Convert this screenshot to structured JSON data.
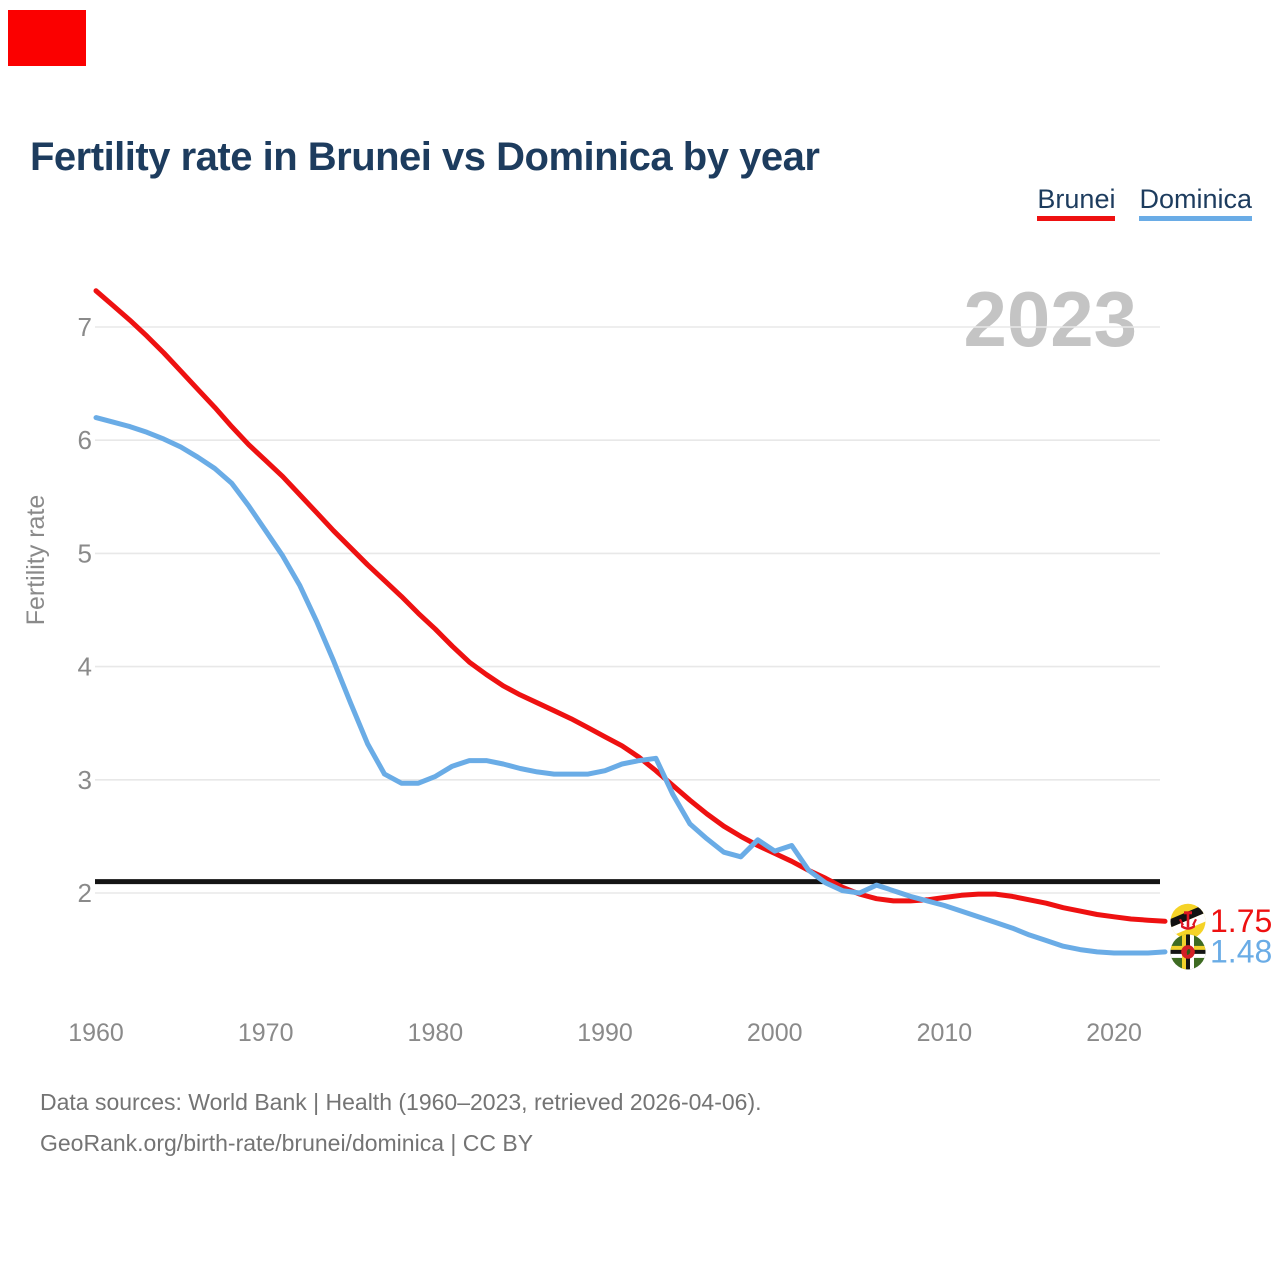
{
  "title": "Fertility rate in Brunei vs Dominica by year",
  "watermark": "2023",
  "legend": {
    "items": [
      {
        "label": "Brunei",
        "color": "#ee1111"
      },
      {
        "label": "Dominica",
        "color": "#6aace6"
      }
    ]
  },
  "footer": {
    "line1": "Data sources: World Bank | Health (1960–2023, retrieved 2026-04-06).",
    "line2": "GeoRank.org/birth-rate/brunei/dominica | CC BY"
  },
  "decorations": {
    "red_box_color": "#fb0000",
    "watermark_color": "#c4c4c4",
    "grid_color": "#e8e8e8",
    "axis_text_color": "#8a8a8a"
  },
  "chart_data": {
    "type": "line",
    "title": "Fertility rate in Brunei vs Dominica by year",
    "xlabel": "",
    "ylabel": "Fertility rate",
    "grid": true,
    "legend_position": "top-right",
    "xticks": [
      1960,
      1970,
      1980,
      1990,
      2000,
      2010,
      2020
    ],
    "yticks": [
      2,
      3,
      4,
      5,
      6,
      7
    ],
    "ylim": [
      1.3,
      7.45
    ],
    "xlim": [
      1960,
      2023
    ],
    "reference_line": {
      "value": 2.1,
      "color": "#141414"
    },
    "x": [
      1960,
      1961,
      1962,
      1963,
      1964,
      1965,
      1966,
      1967,
      1968,
      1969,
      1970,
      1971,
      1972,
      1973,
      1974,
      1975,
      1976,
      1977,
      1978,
      1979,
      1980,
      1981,
      1982,
      1983,
      1984,
      1985,
      1986,
      1987,
      1988,
      1989,
      1990,
      1991,
      1992,
      1993,
      1994,
      1995,
      1996,
      1997,
      1998,
      1999,
      2000,
      2001,
      2002,
      2003,
      2004,
      2005,
      2006,
      2007,
      2008,
      2009,
      2010,
      2011,
      2012,
      2013,
      2014,
      2015,
      2016,
      2017,
      2018,
      2019,
      2020,
      2021,
      2022,
      2023
    ],
    "series": [
      {
        "name": "Brunei",
        "color": "#ee1111",
        "end_label": "1.75",
        "end_value": 1.75,
        "values": [
          7.32,
          7.19,
          7.06,
          6.92,
          6.77,
          6.61,
          6.45,
          6.29,
          6.12,
          5.96,
          5.82,
          5.68,
          5.52,
          5.36,
          5.2,
          5.05,
          4.9,
          4.76,
          4.62,
          4.47,
          4.33,
          4.18,
          4.04,
          3.93,
          3.83,
          3.75,
          3.68,
          3.61,
          3.54,
          3.46,
          3.38,
          3.3,
          3.2,
          3.08,
          2.95,
          2.82,
          2.7,
          2.59,
          2.5,
          2.42,
          2.35,
          2.28,
          2.2,
          2.13,
          2.05,
          1.99,
          1.95,
          1.93,
          1.93,
          1.94,
          1.96,
          1.98,
          1.99,
          1.99,
          1.97,
          1.94,
          1.91,
          1.87,
          1.84,
          1.81,
          1.79,
          1.77,
          1.76,
          1.75
        ]
      },
      {
        "name": "Dominica",
        "color": "#6aace6",
        "end_label": "1.48",
        "end_value": 1.48,
        "values": [
          6.2,
          6.16,
          6.12,
          6.07,
          6.01,
          5.94,
          5.85,
          5.75,
          5.62,
          5.42,
          5.2,
          4.98,
          4.72,
          4.4,
          4.05,
          3.68,
          3.32,
          3.05,
          2.97,
          2.97,
          3.03,
          3.12,
          3.17,
          3.17,
          3.14,
          3.1,
          3.07,
          3.05,
          3.05,
          3.05,
          3.08,
          3.14,
          3.17,
          3.19,
          2.87,
          2.61,
          2.48,
          2.36,
          2.32,
          2.47,
          2.37,
          2.42,
          2.2,
          2.09,
          2.02,
          2.0,
          2.07,
          2.02,
          1.97,
          1.93,
          1.89,
          1.84,
          1.79,
          1.74,
          1.69,
          1.63,
          1.58,
          1.53,
          1.5,
          1.48,
          1.47,
          1.47,
          1.47,
          1.48
        ]
      }
    ]
  }
}
